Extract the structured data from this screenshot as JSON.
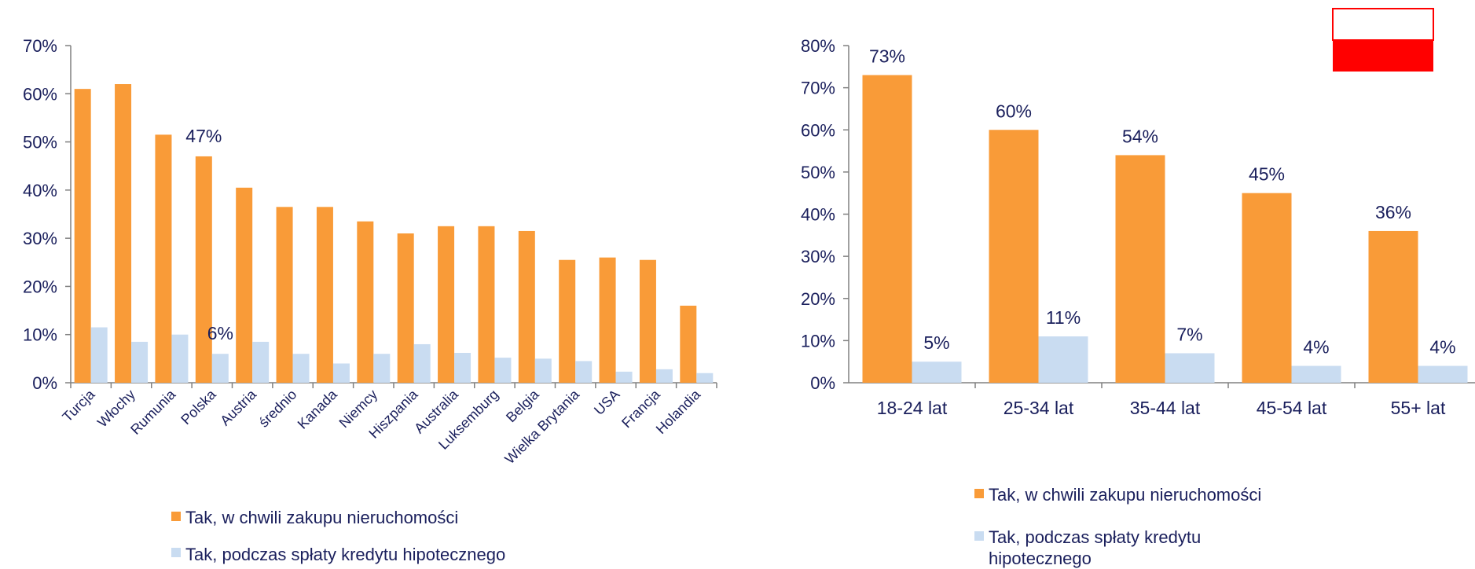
{
  "colors": {
    "orange": "#f99b38",
    "lightblue": "#c9dcf1",
    "axis": "#808080",
    "text": "#1a1f5c",
    "flag_white": "#ffffff",
    "flag_red": "#ff0000"
  },
  "chart_data": [
    {
      "type": "bar",
      "categories": [
        "Turcja",
        "Włochy",
        "Rumunia",
        "Polska",
        "Austria",
        "średnio",
        "Kanada",
        "Niemcy",
        "Hiszpania",
        "Australia",
        "Luksemburg",
        "Belgia",
        "Wielka Brytania",
        "USA",
        "Francja",
        "Holandia"
      ],
      "series": [
        {
          "name": "Tak, w chwili zakupu nieruchomości",
          "values": [
            61,
            62,
            51.5,
            47,
            40.5,
            36.5,
            36.5,
            33.5,
            31,
            32.5,
            32.5,
            31.5,
            25.5,
            26,
            25.5,
            16
          ]
        },
        {
          "name": "Tak, podczas spłaty kredytu hipotecznego",
          "values": [
            11.5,
            8.5,
            10,
            6,
            8.5,
            6,
            4,
            6,
            8,
            6.2,
            5.2,
            5,
            4.5,
            2.3,
            2.8,
            2
          ]
        }
      ],
      "data_labels": [
        {
          "series": 0,
          "category": "Polska",
          "text": "47%"
        },
        {
          "series": 1,
          "category": "Polska",
          "text": "6%"
        }
      ],
      "yticks": [
        "0%",
        "10%",
        "20%",
        "30%",
        "40%",
        "50%",
        "60%",
        "70%"
      ],
      "ylim": [
        0,
        70
      ],
      "legend": [
        "Tak, w chwili zakupu nieruchomości",
        "Tak, podczas spłaty kredytu hipotecznego"
      ],
      "legend_position": "bottom"
    },
    {
      "type": "bar",
      "categories": [
        "18-24 lat",
        "25-34 lat",
        "35-44 lat",
        "45-54 lat",
        "55+ lat"
      ],
      "series": [
        {
          "name": "Tak, w chwili zakupu nieruchomości",
          "values": [
            73,
            60,
            54,
            45,
            36
          ],
          "labels": [
            "73%",
            "60%",
            "54%",
            "45%",
            "36%"
          ]
        },
        {
          "name": "Tak, podczas spłaty kredytu hipotecznego",
          "values": [
            5,
            11,
            7,
            4,
            4
          ],
          "labels": [
            "5%",
            "11%",
            "7%",
            "4%",
            "4%"
          ]
        }
      ],
      "yticks": [
        "0%",
        "10%",
        "20%",
        "30%",
        "40%",
        "50%",
        "60%",
        "70%",
        "80%"
      ],
      "ylim": [
        0,
        80
      ],
      "legend": [
        "Tak, w chwili zakupu nieruchomości",
        "Tak, podczas spłaty kredytu",
        "hipotecznego"
      ],
      "legend_position": "bottom"
    }
  ],
  "flag": {
    "name": "poland-flag-icon"
  }
}
